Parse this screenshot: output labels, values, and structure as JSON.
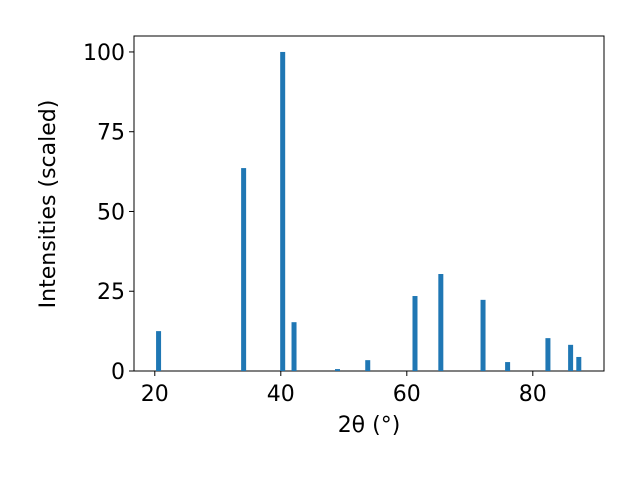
{
  "chart_data": {
    "type": "bar",
    "xlabel": "2θ (°)",
    "ylabel": "Intensities (scaled)",
    "x": [
      20.6,
      34.1,
      40.3,
      42.1,
      49.0,
      53.8,
      61.3,
      65.4,
      72.1,
      76.0,
      82.4,
      86.0,
      87.3
    ],
    "values": [
      12.5,
      63.6,
      100,
      15.3,
      0.6,
      3.4,
      23.5,
      30.4,
      22.3,
      2.8,
      10.3,
      8.2,
      4.4
    ],
    "color": "#1f77b4",
    "xlim": [
      16.7,
      91.3
    ],
    "ylim": [
      0,
      105
    ],
    "xticks": [
      20,
      40,
      60,
      80
    ],
    "yticks": [
      0,
      25,
      50,
      75,
      100
    ]
  }
}
